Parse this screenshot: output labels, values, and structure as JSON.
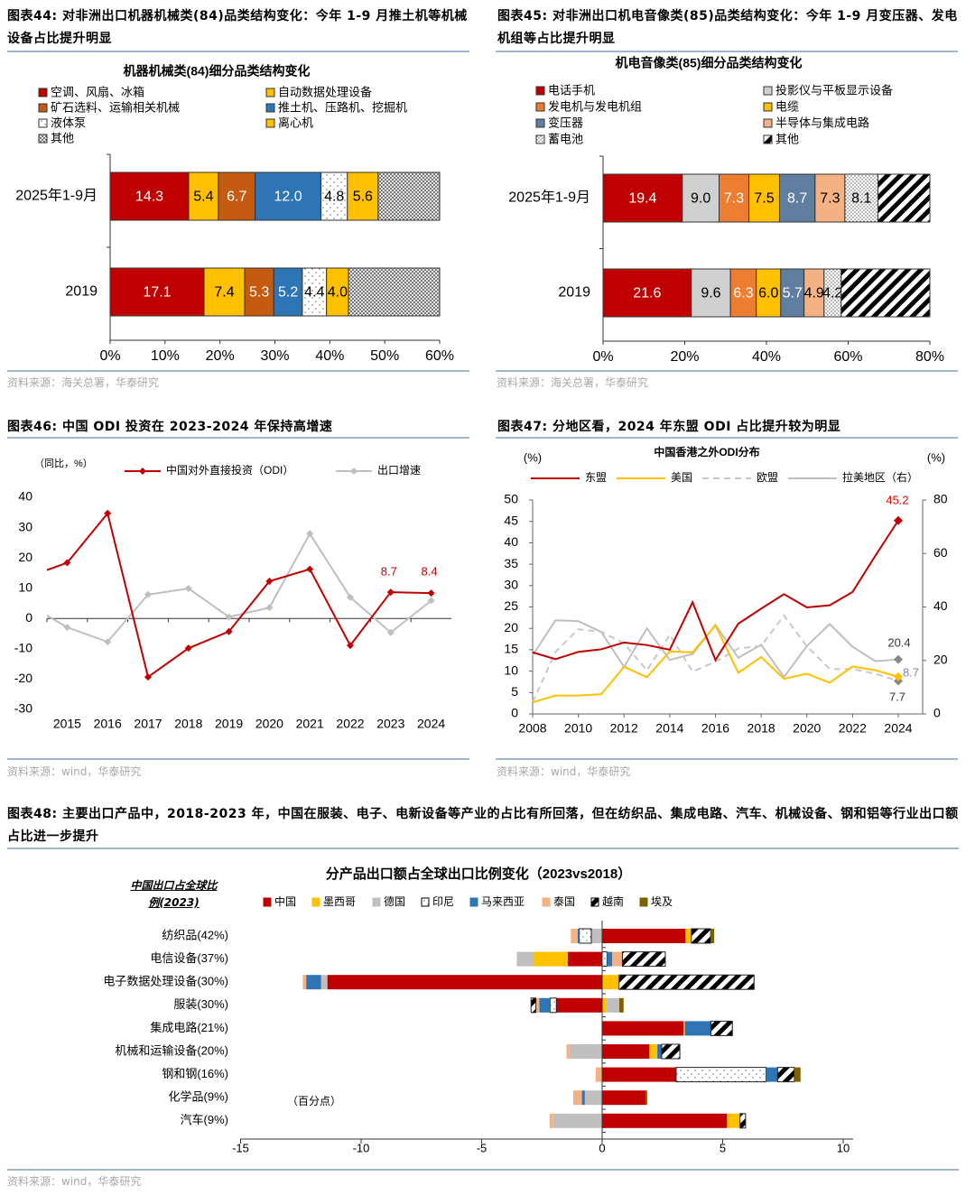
{
  "fig44": {
    "title": "图表44:  对非洲出口机器机械类(84)品类结构变化：今年 1-9 月推土机等机械设备占比提升明显",
    "source": "资料来源：海关总署，华泰研究",
    "chart_data": {
      "type": "bar",
      "orientation": "horizontal-stacked",
      "title": "机器机械类(84)细分品类结构变化",
      "categories": [
        "2025年1-9月",
        "2019"
      ],
      "xlim": [
        0,
        60
      ],
      "xticks": [
        "0%",
        "10%",
        "20%",
        "30%",
        "40%",
        "50%",
        "60%"
      ],
      "series": [
        {
          "name": "空调、风扇、冰箱",
          "color": "#C00000",
          "values": [
            14.3,
            17.1
          ],
          "labels": [
            "14.3",
            "17.1"
          ]
        },
        {
          "name": "自动数据处理设备",
          "color": "#FFC000",
          "values": [
            5.4,
            7.4
          ],
          "labels": [
            "5.4",
            "7.4"
          ]
        },
        {
          "name": "矿石选料、运输相关机械",
          "color": "#C55A11",
          "values": [
            6.7,
            5.3
          ],
          "labels": [
            "6.7",
            "5.3"
          ]
        },
        {
          "name": "推土机、压路机、挖掘机",
          "color": "#2E75B6",
          "values": [
            12.0,
            5.2
          ],
          "labels": [
            "12.0",
            "5.2"
          ]
        },
        {
          "name": "液体泵",
          "color": "#FFFFFF",
          "pattern": "dots",
          "values": [
            4.8,
            4.4
          ],
          "labels": [
            "4.8",
            "4.4"
          ]
        },
        {
          "name": "离心机",
          "color": "#FFC000",
          "values": [
            5.6,
            4.0
          ],
          "labels": [
            "5.6",
            "4.0"
          ]
        },
        {
          "name": "其他",
          "color": "#808080",
          "pattern": "cross",
          "values": [
            11.2,
            16.6
          ],
          "labels": [
            "",
            ""
          ]
        }
      ]
    }
  },
  "fig45": {
    "title": "图表45:  对非洲出口机电音像类(85)品类结构变化：今年 1-9 月变压器、发电机组等占比提升明显",
    "source": "资料来源：海关总署，华泰研究",
    "chart_data": {
      "type": "bar",
      "orientation": "horizontal-stacked",
      "title": "机电音像类(85)细分品类结构变化",
      "categories": [
        "2025年1-9月",
        "2019"
      ],
      "xlim": [
        0,
        80
      ],
      "xticks": [
        "0%",
        "20%",
        "40%",
        "60%",
        "80%"
      ],
      "series": [
        {
          "name": "电话手机",
          "color": "#C00000",
          "values": [
            19.4,
            21.6
          ],
          "labels": [
            "19.4",
            "21.6"
          ]
        },
        {
          "name": "投影仪与平板显示设备",
          "color": "#D0D0D0",
          "values": [
            9.0,
            9.6
          ],
          "labels": [
            "9.0",
            "9.6"
          ]
        },
        {
          "name": "发电机与发电机组",
          "color": "#ED7D31",
          "values": [
            7.3,
            6.3
          ],
          "labels": [
            "7.3",
            "6.3"
          ]
        },
        {
          "name": "电缆",
          "color": "#FFC000",
          "values": [
            7.5,
            6.0
          ],
          "labels": [
            "7.5",
            "6.0"
          ]
        },
        {
          "name": "变压器",
          "color": "#5F7EA0",
          "values": [
            8.7,
            5.7
          ],
          "labels": [
            "8.7",
            "5.7"
          ]
        },
        {
          "name": "半导体与集成电路",
          "color": "#F4B183",
          "values": [
            7.3,
            4.9
          ],
          "labels": [
            "7.3",
            "4.9"
          ]
        },
        {
          "name": "蓄电池",
          "color": "#FFFFFF",
          "pattern": "densedots",
          "values": [
            8.1,
            4.2
          ],
          "labels": [
            "8.1",
            "4.2"
          ]
        },
        {
          "name": "其他",
          "color": "#000000",
          "pattern": "hatch",
          "values": [
            12.7,
            21.7
          ],
          "labels": [
            "",
            ""
          ]
        }
      ]
    }
  },
  "fig46": {
    "title": "图表46:  中国 ODI 投资在 2023-2024 年保持高增速",
    "source": "资料来源：wind，华泰研究",
    "chart_data": {
      "type": "line",
      "unit_label": "（同比，%）",
      "x": [
        2014,
        2015,
        2016,
        2017,
        2018,
        2019,
        2020,
        2021,
        2022,
        2023,
        2024
      ],
      "xlim": [
        2014.5,
        2024.5
      ],
      "xticks": [
        2015,
        2016,
        2017,
        2018,
        2019,
        2020,
        2021,
        2022,
        2023,
        2024
      ],
      "ylim": [
        -30,
        40
      ],
      "yticks": [
        -30,
        -20,
        -10,
        0,
        10,
        20,
        30,
        40
      ],
      "series": [
        {
          "name": "中国对外直接投资（ODI）",
          "color": "#C00000",
          "marker": "diamond",
          "values": [
            13.6,
            18.4,
            34.7,
            -19.3,
            -9.8,
            -4.3,
            12.3,
            16.3,
            -8.9,
            8.7,
            8.4
          ]
        },
        {
          "name": "出口增速",
          "color": "#BFBFBF",
          "marker": "diamond",
          "values": [
            4.9,
            -2.9,
            -7.7,
            7.9,
            9.9,
            0.5,
            3.6,
            28.0,
            7.0,
            -4.6,
            5.9
          ]
        }
      ],
      "annotations": [
        {
          "text": "8.7",
          "x": 2023,
          "color": "#C00000"
        },
        {
          "text": "8.4",
          "x": 2024,
          "color": "#C00000"
        }
      ]
    }
  },
  "fig47": {
    "title": "图表47:  分地区看，2024 年东盟 ODI 占比提升较为明显",
    "source": "资料来源：wind，华泰研究",
    "chart_data": {
      "type": "line",
      "title": "中国香港之外ODI分布",
      "ylabel_left": "(%)",
      "ylabel_right": "(%)",
      "x": [
        2008,
        2009,
        2010,
        2011,
        2012,
        2013,
        2014,
        2015,
        2016,
        2017,
        2018,
        2019,
        2020,
        2021,
        2022,
        2023,
        2024
      ],
      "xlim": [
        2008,
        2025
      ],
      "xticks": [
        2008,
        2010,
        2012,
        2014,
        2016,
        2018,
        2020,
        2022,
        2024
      ],
      "ylim": [
        0,
        50
      ],
      "yticks": [
        0,
        5,
        10,
        15,
        20,
        25,
        30,
        35,
        40,
        45,
        50
      ],
      "ylim_right": [
        0,
        80
      ],
      "yticks_right": [
        0,
        20,
        40,
        60,
        80
      ],
      "series": [
        {
          "name": "东盟",
          "color": "#C00000",
          "axis": "left",
          "dash": false,
          "values": [
            14.4,
            12.8,
            14.5,
            15.1,
            16.7,
            16.1,
            15.0,
            26.1,
            12.6,
            21.1,
            24.6,
            28.0,
            24.9,
            25.4,
            28.5,
            37.0,
            45.2
          ]
        },
        {
          "name": "美国",
          "color": "#FFC000",
          "axis": "left",
          "dash": false,
          "values": [
            2.7,
            4.3,
            4.3,
            4.6,
            11.0,
            8.6,
            14.6,
            14.4,
            20.7,
            9.6,
            13.3,
            8.2,
            9.4,
            7.3,
            11.1,
            10.2,
            8.7
          ]
        },
        {
          "name": "欧盟",
          "color": "#C8C8C8",
          "axis": "left",
          "dash": true,
          "values": [
            2.7,
            14.5,
            19.8,
            19.2,
            16.5,
            10.2,
            18.5,
            9.9,
            12.2,
            15.3,
            15.9,
            23.0,
            15.8,
            10.5,
            10.5,
            9.4,
            7.7
          ]
        },
        {
          "name": "拉美地区（右）",
          "color": "#BFBFBF",
          "axis": "right",
          "dash": false,
          "values": [
            21.9,
            35.0,
            34.7,
            30.7,
            17.6,
            32.0,
            20.2,
            22.4,
            33.3,
            21.0,
            25.9,
            13.8,
            25.4,
            33.6,
            25.1,
            19.7,
            20.4
          ]
        }
      ],
      "annotations": [
        {
          "text": "45.2",
          "color": "#E00000"
        },
        {
          "text": "20.4",
          "color": "#333333"
        },
        {
          "text": "8.7",
          "color": "#8E7CC3"
        },
        {
          "text": "7.7",
          "color": "#333333"
        }
      ]
    }
  },
  "fig48": {
    "title": "图表48:  主要出口产品中，2018-2023 年，中国在服装、电子、电新设备等产业的占比有所回落，但在纺织品、集成电路、汽车、机械设备、钢和铝等行业出口额占比进一步提升",
    "source": "资料来源：wind，华泰研究",
    "left_header": "中国出口占全球比例(2023)",
    "chart_data": {
      "type": "bar",
      "orientation": "horizontal-diverging-stacked",
      "title": "分产品出口额占全球出口比例变化（2023vs2018）",
      "unit_label": "（百分点）",
      "categories": [
        "纺织品(42%)",
        "电信设备(37%)",
        "电子数据处理设备(30%)",
        "服装(30%)",
        "集成电路(21%)",
        "机械和运输设备(20%)",
        "钢和钢(16%)",
        "化学品(9%)",
        "汽车(9%)"
      ],
      "xlim": [
        -15,
        10
      ],
      "xticks": [
        -15,
        -10,
        -5,
        0,
        5,
        10
      ],
      "series": [
        {
          "name": "中国",
          "color": "#C00000",
          "values": [
            3.46,
            -1.43,
            -11.4,
            -1.9,
            3.37,
            1.96,
            3.07,
            1.81,
            5.18
          ]
        },
        {
          "name": "墨西哥",
          "color": "#FFC000",
          "values": [
            0.24,
            -1.43,
            0.7,
            0.18,
            0.06,
            0.33,
            -0.03,
            0,
            0.54
          ]
        },
        {
          "name": "德国",
          "color": "#BFBFBF",
          "values": [
            -0.45,
            -0.68,
            -0.26,
            0.53,
            0,
            -1.36,
            0,
            -0.72,
            -2.03
          ]
        },
        {
          "name": "印尼",
          "color": "#FFFFFF",
          "pattern": "dots",
          "values": [
            -0.5,
            0.2,
            0,
            -0.26,
            0,
            0,
            3.73,
            0,
            0
          ]
        },
        {
          "name": "马来西亚",
          "color": "#2E75B6",
          "values": [
            -0.06,
            0.22,
            -0.62,
            -0.45,
            1.08,
            0.18,
            0.48,
            -0.12,
            0
          ]
        },
        {
          "name": "泰国",
          "color": "#F4B183",
          "values": [
            -0.29,
            0.42,
            -0.14,
            -0.14,
            0,
            -0.12,
            -0.24,
            -0.36,
            -0.15
          ]
        },
        {
          "name": "越南",
          "color": "#000000",
          "pattern": "hatch",
          "values": [
            0.8,
            1.78,
            5.6,
            -0.2,
            0.89,
            0.75,
            0.69,
            0,
            0.23
          ]
        },
        {
          "name": "埃及",
          "color": "#7F6000",
          "values": [
            0.15,
            0,
            0.03,
            0.18,
            0.03,
            0.03,
            0.26,
            0.06,
            0
          ]
        }
      ]
    }
  }
}
